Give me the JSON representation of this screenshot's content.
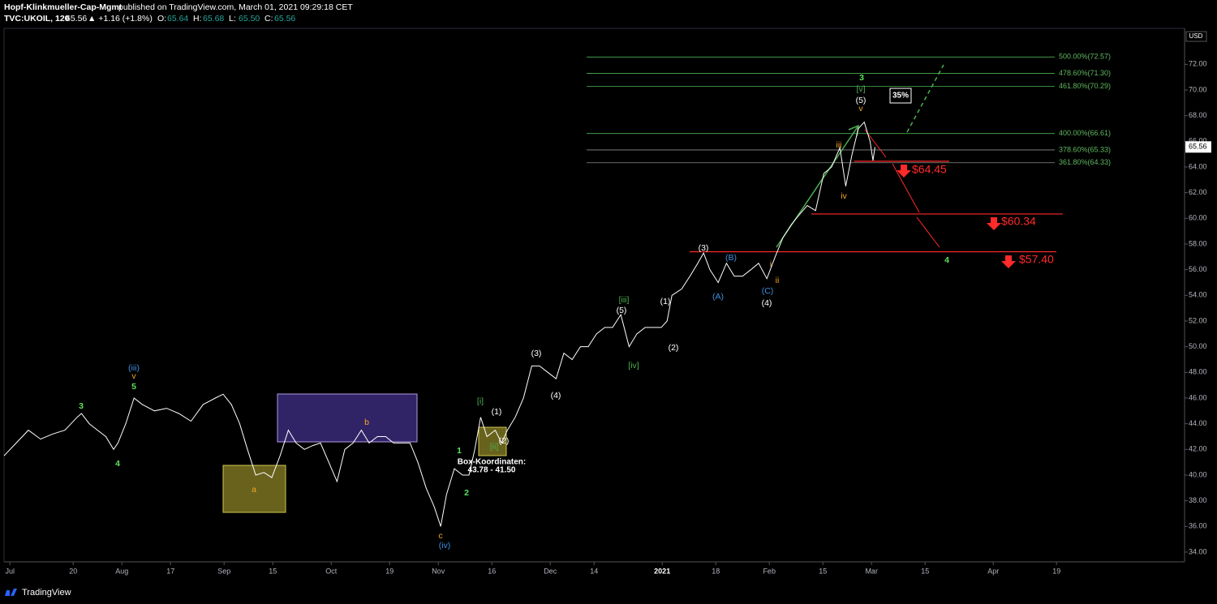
{
  "header": {
    "author": "Hopf-Klinkmueller-Cap-Mgmt",
    "published": "published on TradingView.com, March 01, 2021 09:29:18 CET",
    "symbol": "TVC:UKOIL, 120",
    "last": "65.56",
    "change": "▲ +1.16 (+1.8%)",
    "ohlc": [
      {
        "label": "O:",
        "value": "65.64"
      },
      {
        "label": "H:",
        "value": "65.68"
      },
      {
        "label": "L:",
        "value": "65.50"
      },
      {
        "label": "C:",
        "value": "65.56"
      }
    ]
  },
  "chart_data": {
    "type": "line",
    "currency": "USD",
    "price_tag": "65.56",
    "x": [
      -1.2,
      1.3,
      3.8,
      6.3,
      8.8,
      11.3,
      13.8,
      14.7,
      16.3,
      18,
      19.7,
      21.3,
      22.2,
      23.8,
      25.5,
      27.2,
      29.7,
      32.2,
      34.7,
      37.2,
      39.7,
      42.2,
      43.8,
      45.5,
      47.2,
      48.8,
      50.5,
      52.2,
      53.8,
      55.5,
      57.2,
      58.8,
      60.5,
      62.2,
      63.8,
      65.5,
      67.2,
      68.8,
      70.5,
      72.2,
      73.8,
      75.5,
      77.2,
      78.8,
      80.5,
      82.2,
      83.8,
      85.5,
      87.2,
      88.5,
      89.7,
      91.3,
      93,
      94.3,
      95.5,
      96.7,
      98,
      99.7,
      101,
      102.2,
      103.8,
      105.5,
      107.2,
      108.8,
      110.5,
      112.2,
      113.8,
      115.5,
      117.2,
      118.8,
      120.5,
      122.2,
      123.8,
      125.5,
      127.2,
      128.8,
      130.5,
      132.2,
      133.8,
      135,
      136,
      138,
      139.7,
      141.3,
      142.5,
      143.8,
      145.5,
      147.2,
      148.8,
      150.5,
      152.2,
      153.8,
      155.5,
      157.2,
      158.8,
      160.5,
      162.2,
      163.8,
      165.5,
      167.2,
      168.8,
      170.5,
      171.7,
      173,
      174.3,
      175.5,
      176.7,
      177.3,
      177.7
    ],
    "series": [
      {
        "name": "UKOIL",
        "color": "#ffffff",
        "values": [
          41.5,
          42.5,
          43.5,
          42.8,
          43.2,
          43.5,
          44.5,
          44.8,
          44,
          43.5,
          43,
          42,
          42.5,
          44,
          46,
          45.5,
          45,
          45.2,
          44.8,
          44.2,
          45.5,
          46,
          46.3,
          45.5,
          44,
          42,
          40,
          40.2,
          39.8,
          41.5,
          43.5,
          42.5,
          42,
          42.3,
          42.5,
          41,
          39.5,
          42,
          42.5,
          43.5,
          42.5,
          43,
          43,
          42.5,
          42.5,
          42.5,
          41,
          39,
          37.5,
          36,
          38.5,
          40.5,
          40,
          40,
          42,
          44.5,
          43,
          43.5,
          42.5,
          43.5,
          44.5,
          46,
          48.5,
          48.5,
          48,
          47.5,
          49.5,
          49,
          50,
          50,
          51,
          51.5,
          51.5,
          52.5,
          50,
          51,
          51.5,
          51.5,
          51.5,
          52,
          54,
          54.5,
          55.5,
          56.5,
          57.3,
          56,
          55,
          56.5,
          55.5,
          55.5,
          56,
          56.5,
          55.3,
          57,
          58.5,
          59.5,
          60.3,
          61,
          60.6,
          63.5,
          64,
          65.5,
          62.5,
          65,
          67,
          67.5,
          66,
          64.5,
          65.56
        ]
      }
    ],
    "xlim": [
      -1.2,
      241.3
    ],
    "ylim": [
      33.24,
      74.8
    ],
    "xticks": [
      {
        "value": 0,
        "label": "Jul"
      },
      {
        "value": 13,
        "label": "20"
      },
      {
        "value": 23,
        "label": "Aug"
      },
      {
        "value": 33,
        "label": "17"
      },
      {
        "value": 44,
        "label": "Sep"
      },
      {
        "value": 54,
        "label": "15"
      },
      {
        "value": 66,
        "label": "Oct"
      },
      {
        "value": 78,
        "label": "19"
      },
      {
        "value": 88,
        "label": "Nov"
      },
      {
        "value": 99,
        "label": "16"
      },
      {
        "value": 111,
        "label": "Dec"
      },
      {
        "value": 120,
        "label": "14"
      },
      {
        "value": 134,
        "label": "2021"
      },
      {
        "value": 145,
        "label": "18"
      },
      {
        "value": 156,
        "label": "Feb"
      },
      {
        "value": 167,
        "label": "15"
      },
      {
        "value": 177,
        "label": "Mar"
      },
      {
        "value": 188,
        "label": "15"
      },
      {
        "value": 202,
        "label": "Apr"
      },
      {
        "value": 215,
        "label": "19"
      }
    ],
    "yticks": [
      {
        "value": 34,
        "label": "34.00"
      },
      {
        "value": 36,
        "label": "36.00"
      },
      {
        "value": 38,
        "label": "38.00"
      },
      {
        "value": 40,
        "label": "40.00"
      },
      {
        "value": 42,
        "label": "42.00"
      },
      {
        "value": 44,
        "label": "44.00"
      },
      {
        "value": 46,
        "label": "46.00"
      },
      {
        "value": 48,
        "label": "48.00"
      },
      {
        "value": 50,
        "label": "50.00"
      },
      {
        "value": 52,
        "label": "52.00"
      },
      {
        "value": 54,
        "label": "54.00"
      },
      {
        "value": 56,
        "label": "56.00"
      },
      {
        "value": 58,
        "label": "58.00"
      },
      {
        "value": 60,
        "label": "60.00"
      },
      {
        "value": 62,
        "label": "62.00"
      },
      {
        "value": 64,
        "label": "64.00"
      },
      {
        "value": 66,
        "label": "66.00"
      },
      {
        "value": 68,
        "label": "68.00"
      },
      {
        "value": 70,
        "label": "70.00"
      },
      {
        "value": 72,
        "label": "72.00"
      }
    ],
    "fib_levels": [
      {
        "value": 72.57,
        "label": "500.00%(72.57)"
      },
      {
        "value": 71.3,
        "label": "478.60%(71.30)"
      },
      {
        "value": 70.29,
        "label": "461.80%(70.29)"
      },
      {
        "value": 66.61,
        "label": "400.00%(66.61)"
      },
      {
        "value": 65.33,
        "label": "378.60%(65.33)"
      },
      {
        "value": 64.33,
        "label": "361.80%(64.33)"
      }
    ],
    "targets": {
      "values": [
        64.45,
        60.34,
        57.4
      ],
      "value_labels": [
        "$64.45",
        "$60.34",
        "$57.40"
      ]
    },
    "annotations": [
      "3",
      "4",
      "(iii)",
      "v",
      "5",
      "a",
      "b",
      "1",
      "2",
      "c",
      "(iv)",
      "[i]",
      "(1)",
      "(2)",
      "[ii]",
      "(3)",
      "(4)",
      "[iii]",
      "(5)",
      "[iv]",
      "(1)",
      "(2)",
      "(3)",
      "(A)",
      "(B)",
      "(C)",
      "(4)",
      "i",
      "ii",
      "iii",
      "iv",
      "(5)",
      "v",
      "[v]",
      "3",
      "4",
      "35%",
      "Box-Koordinaten:",
      "43.78 - 41.50"
    ]
  },
  "footer": {
    "brand": "TradingView"
  }
}
